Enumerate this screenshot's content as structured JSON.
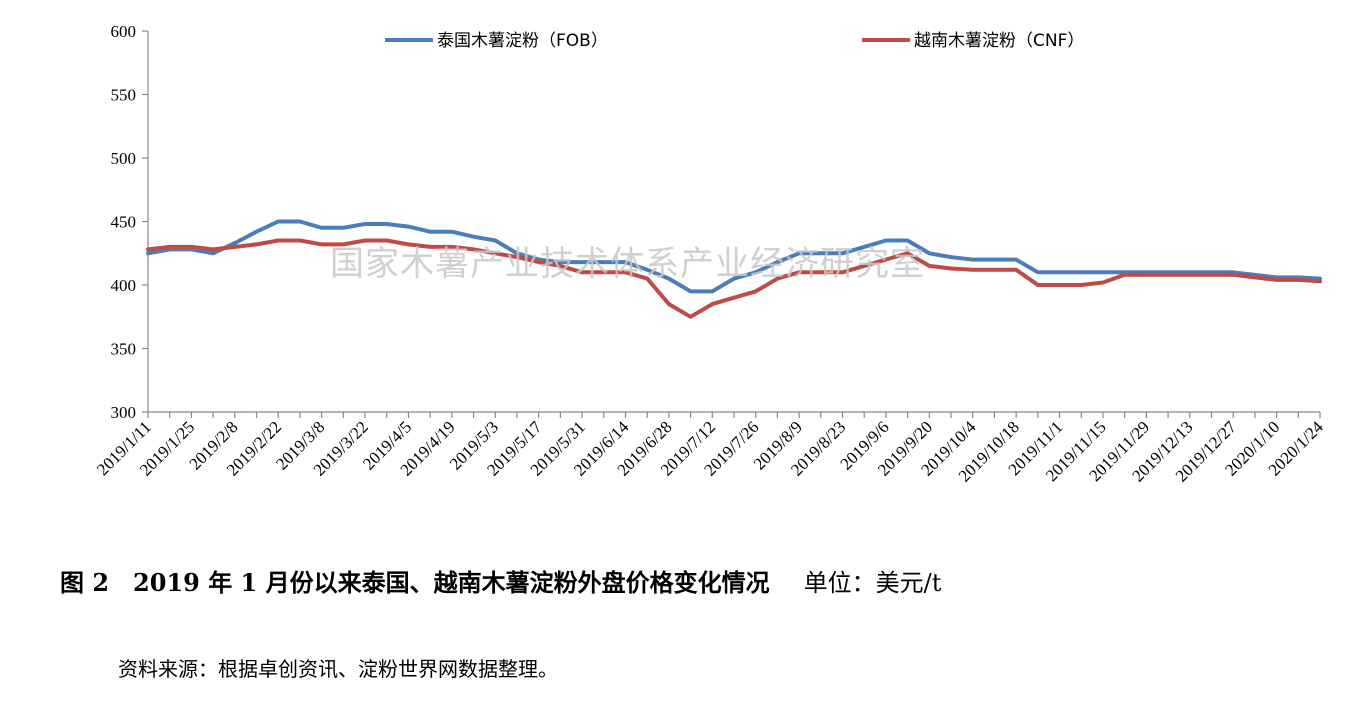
{
  "chart_data": {
    "type": "line",
    "x": [
      "2019/1/11",
      "2019/1/18",
      "2019/1/25",
      "2019/2/1",
      "2019/2/8",
      "2019/2/15",
      "2019/2/22",
      "2019/3/1",
      "2019/3/8",
      "2019/3/15",
      "2019/3/22",
      "2019/3/29",
      "2019/4/5",
      "2019/4/12",
      "2019/4/19",
      "2019/4/26",
      "2019/5/3",
      "2019/5/10",
      "2019/5/17",
      "2019/5/24",
      "2019/5/31",
      "2019/6/7",
      "2019/6/14",
      "2019/6/21",
      "2019/6/28",
      "2019/7/5",
      "2019/7/12",
      "2019/7/19",
      "2019/7/26",
      "2019/8/2",
      "2019/8/9",
      "2019/8/16",
      "2019/8/23",
      "2019/8/30",
      "2019/9/6",
      "2019/9/13",
      "2019/9/20",
      "2019/9/27",
      "2019/10/4",
      "2019/10/11",
      "2019/10/18",
      "2019/10/25",
      "2019/11/1",
      "2019/11/8",
      "2019/11/15",
      "2019/11/22",
      "2019/11/29",
      "2019/12/6",
      "2019/12/13",
      "2019/12/20",
      "2019/12/27",
      "2020/1/3",
      "2020/1/10",
      "2020/1/17",
      "2020/1/24"
    ],
    "x_tick_labels": [
      "2019/1/11",
      "2019/1/25",
      "2019/2/8",
      "2019/2/22",
      "2019/3/8",
      "2019/3/22",
      "2019/4/5",
      "2019/4/19",
      "2019/5/3",
      "2019/5/17",
      "2019/5/31",
      "2019/6/14",
      "2019/6/28",
      "2019/7/12",
      "2019/7/26",
      "2019/8/9",
      "2019/8/23",
      "2019/9/6",
      "2019/9/20",
      "2019/10/4",
      "2019/10/18",
      "2019/11/1",
      "2019/11/15",
      "2019/11/29",
      "2019/12/13",
      "2019/12/27",
      "2020/1/10",
      "2020/1/24"
    ],
    "series": [
      {
        "name": "泰国木薯淀粉（FOB）",
        "color": "#4a7ebb",
        "values": [
          425,
          428,
          428,
          425,
          433,
          442,
          450,
          450,
          445,
          445,
          448,
          448,
          446,
          442,
          442,
          438,
          435,
          425,
          420,
          418,
          418,
          418,
          418,
          412,
          405,
          395,
          395,
          405,
          410,
          418,
          425,
          425,
          425,
          430,
          435,
          435,
          425,
          422,
          420,
          420,
          420,
          410,
          410,
          410,
          410,
          410,
          410,
          410,
          410,
          410,
          410,
          408,
          406,
          406,
          405
        ]
      },
      {
        "name": "越南木薯淀粉（CNF）",
        "color": "#be4b48",
        "values": [
          428,
          430,
          430,
          428,
          430,
          432,
          435,
          435,
          432,
          432,
          435,
          435,
          432,
          430,
          430,
          428,
          425,
          422,
          418,
          415,
          410,
          410,
          410,
          405,
          385,
          375,
          385,
          390,
          395,
          405,
          410,
          410,
          410,
          415,
          420,
          425,
          415,
          413,
          412,
          412,
          412,
          400,
          400,
          400,
          402,
          408,
          408,
          408,
          408,
          408,
          408,
          406,
          404,
          404,
          403
        ]
      }
    ],
    "ylim": [
      300,
      600
    ],
    "y_ticks": [
      300,
      350,
      400,
      450,
      500,
      550,
      600
    ],
    "grid": false,
    "legend": "top",
    "watermark": "国家木薯产业技术体系产业经济研究室"
  },
  "caption": {
    "title": "图 2　2019 年 1 月份以来泰国、越南木薯淀粉外盘价格变化情况",
    "unit": "单位：美元/t"
  },
  "source_note": "资料来源：根据卓创资讯、淀粉世界网数据整理。"
}
